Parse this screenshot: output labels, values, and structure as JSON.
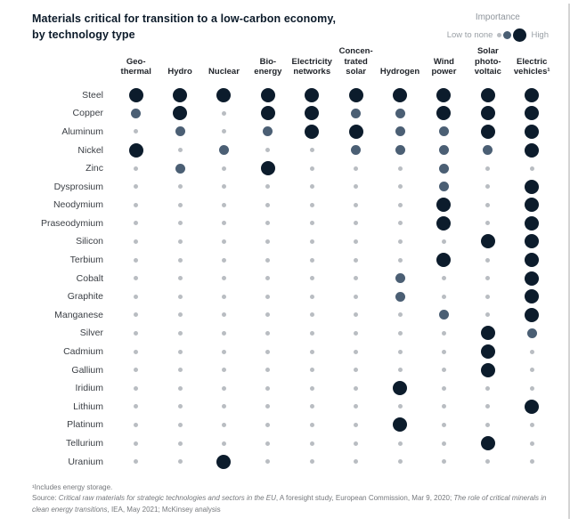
{
  "title": "Materials critical for transition to a low-carbon economy,\nby technology type",
  "legend": {
    "title": "Importance",
    "low_label": "Low to none",
    "high_label": "High"
  },
  "footnote": {
    "note1": "¹Includes energy storage.",
    "source_segments": [
      {
        "text": "Source: ",
        "italic": false
      },
      {
        "text": "Critical raw materials for strategic technologies and sectors in the EU",
        "italic": true
      },
      {
        "text": ", A foresight study, European Commission, Mar 9, 2020; ",
        "italic": false
      },
      {
        "text": "The role of critical minerals in clean energy transitions",
        "italic": true
      },
      {
        "text": ", IEA, May 2021; McKinsey analysis",
        "italic": false
      }
    ]
  },
  "colors": {
    "high": "#0c1c2c",
    "medium": "#4b5f74",
    "low": "#b9bdc2",
    "title_text": "#0c1b2a",
    "label_text": "#3c4046",
    "muted_text": "#8e949b"
  },
  "chart_data": {
    "type": "heatmap",
    "title": "Materials critical for transition to a low-carbon economy, by technology type",
    "legend_title": "Importance",
    "value_scale": {
      "0": "low to none",
      "1": "medium",
      "2": "high"
    },
    "columns": [
      "Geo-\nthermal",
      "Hydro",
      "Nuclear",
      "Bio-\nenergy",
      "Electricity\nnetworks",
      "Concen-\ntrated\nsolar",
      "Hydrogen",
      "Wind\npower",
      "Solar\nphoto-\nvoltaic",
      "Electric\nvehicles¹"
    ],
    "rows": [
      "Steel",
      "Copper",
      "Aluminum",
      "Nickel",
      "Zinc",
      "Dysprosium",
      "Neodymium",
      "Praseodymium",
      "Silicon",
      "Terbium",
      "Cobalt",
      "Graphite",
      "Manganese",
      "Silver",
      "Cadmium",
      "Gallium",
      "Iridium",
      "Lithium",
      "Platinum",
      "Tellurium",
      "Uranium"
    ],
    "values": [
      [
        2,
        2,
        2,
        2,
        2,
        2,
        2,
        2,
        2,
        2
      ],
      [
        1,
        2,
        0,
        2,
        2,
        1,
        1,
        2,
        2,
        2
      ],
      [
        0,
        1,
        0,
        1,
        2,
        2,
        1,
        1,
        2,
        2
      ],
      [
        2,
        0,
        1,
        0,
        0,
        1,
        1,
        1,
        1,
        2
      ],
      [
        0,
        1,
        0,
        2,
        0,
        0,
        0,
        1,
        0,
        0
      ],
      [
        0,
        0,
        0,
        0,
        0,
        0,
        0,
        1,
        0,
        2
      ],
      [
        0,
        0,
        0,
        0,
        0,
        0,
        0,
        2,
        0,
        2
      ],
      [
        0,
        0,
        0,
        0,
        0,
        0,
        0,
        2,
        0,
        2
      ],
      [
        0,
        0,
        0,
        0,
        0,
        0,
        0,
        0,
        2,
        2
      ],
      [
        0,
        0,
        0,
        0,
        0,
        0,
        0,
        2,
        0,
        2
      ],
      [
        0,
        0,
        0,
        0,
        0,
        0,
        1,
        0,
        0,
        2
      ],
      [
        0,
        0,
        0,
        0,
        0,
        0,
        1,
        0,
        0,
        2
      ],
      [
        0,
        0,
        0,
        0,
        0,
        0,
        0,
        1,
        0,
        2
      ],
      [
        0,
        0,
        0,
        0,
        0,
        0,
        0,
        0,
        2,
        1
      ],
      [
        0,
        0,
        0,
        0,
        0,
        0,
        0,
        0,
        2,
        0
      ],
      [
        0,
        0,
        0,
        0,
        0,
        0,
        0,
        0,
        2,
        0
      ],
      [
        0,
        0,
        0,
        0,
        0,
        0,
        2,
        0,
        0,
        0
      ],
      [
        0,
        0,
        0,
        0,
        0,
        0,
        0,
        0,
        0,
        2
      ],
      [
        0,
        0,
        0,
        0,
        0,
        0,
        2,
        0,
        0,
        0
      ],
      [
        0,
        0,
        0,
        0,
        0,
        0,
        0,
        0,
        2,
        0
      ],
      [
        0,
        0,
        2,
        0,
        0,
        0,
        0,
        0,
        0,
        0
      ]
    ]
  }
}
